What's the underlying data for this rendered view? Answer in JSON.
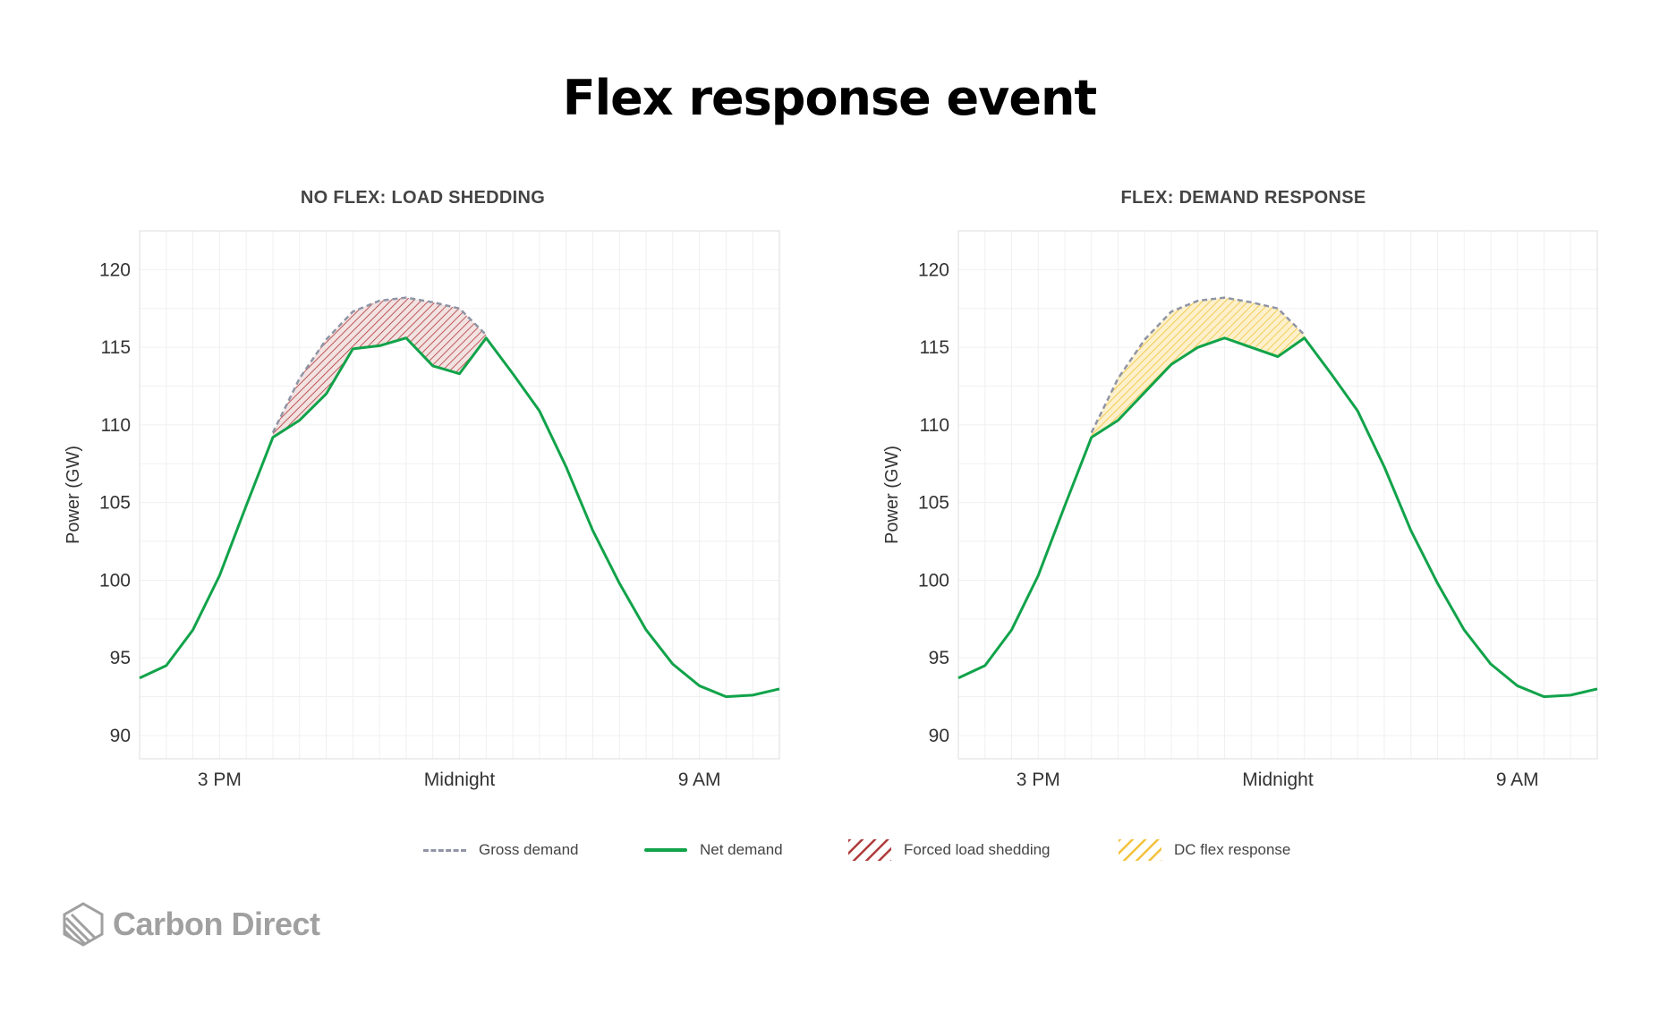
{
  "title": "Flex response event",
  "legend": {
    "gross": "Gross demand",
    "net": "Net demand",
    "shedding": "Forced load shedding",
    "flex": "DC flex response"
  },
  "logo": {
    "text": "Carbon Direct",
    "icon": "hexagon-stripes-icon"
  },
  "colors": {
    "net": "#11a34a",
    "gross": "#8f95a6",
    "shedding": "#b03a3a",
    "flex": "#f2c23c"
  },
  "chart_data": [
    {
      "type": "line",
      "title": "NO FLEX: LOAD SHEDDING",
      "ylabel": "Power (GW)",
      "ylim": [
        88.5,
        122.5
      ],
      "y_ticks": [
        90,
        95,
        100,
        105,
        110,
        115,
        120
      ],
      "x_ticks": [
        {
          "hour": 3,
          "label": "3 PM"
        },
        {
          "hour": 12,
          "label": "Midnight"
        },
        {
          "hour": 21,
          "label": "9 AM"
        }
      ],
      "xlim": [
        0,
        24
      ],
      "shading": "shedding",
      "series": [
        {
          "name": "Gross demand",
          "style": "dashed",
          "x": [
            5,
            6,
            7,
            8,
            9,
            10,
            11,
            12,
            13
          ],
          "values": [
            109.5,
            113.0,
            115.5,
            117.3,
            118.0,
            118.2,
            117.9,
            117.5,
            115.8
          ]
        },
        {
          "name": "Net demand",
          "style": "solid",
          "x": [
            0,
            1,
            2,
            3,
            4,
            5,
            6,
            7,
            8,
            9,
            10,
            11,
            12,
            13,
            14,
            15,
            16,
            17,
            18,
            19,
            20,
            21,
            22,
            23,
            24
          ],
          "values": [
            93.7,
            94.5,
            96.8,
            100.3,
            104.8,
            109.2,
            110.3,
            112.0,
            114.9,
            115.1,
            115.6,
            113.8,
            113.3,
            115.6,
            113.3,
            110.9,
            107.3,
            103.2,
            99.8,
            96.8,
            94.6,
            93.2,
            92.5,
            92.6,
            93.0
          ]
        }
      ]
    },
    {
      "type": "line",
      "title": "FLEX: DEMAND RESPONSE",
      "ylabel": "Power (GW)",
      "ylim": [
        88.5,
        122.5
      ],
      "y_ticks": [
        90,
        95,
        100,
        105,
        110,
        115,
        120
      ],
      "x_ticks": [
        {
          "hour": 3,
          "label": "3 PM"
        },
        {
          "hour": 12,
          "label": "Midnight"
        },
        {
          "hour": 21,
          "label": "9 AM"
        }
      ],
      "xlim": [
        0,
        24
      ],
      "shading": "flex",
      "series": [
        {
          "name": "Gross demand",
          "style": "dashed",
          "x": [
            5,
            6,
            7,
            8,
            9,
            10,
            11,
            12,
            13
          ],
          "values": [
            109.5,
            113.0,
            115.5,
            117.3,
            118.0,
            118.2,
            117.9,
            117.5,
            115.8
          ]
        },
        {
          "name": "Net demand",
          "style": "solid",
          "x": [
            0,
            1,
            2,
            3,
            4,
            5,
            6,
            7,
            8,
            9,
            10,
            11,
            12,
            13,
            14,
            15,
            16,
            17,
            18,
            19,
            20,
            21,
            22,
            23,
            24
          ],
          "values": [
            93.7,
            94.5,
            96.8,
            100.3,
            104.8,
            109.2,
            110.3,
            112.1,
            113.9,
            115.0,
            115.6,
            115.0,
            114.4,
            115.6,
            113.3,
            110.9,
            107.3,
            103.2,
            99.8,
            96.8,
            94.6,
            93.2,
            92.5,
            92.6,
            93.0
          ]
        }
      ]
    }
  ]
}
